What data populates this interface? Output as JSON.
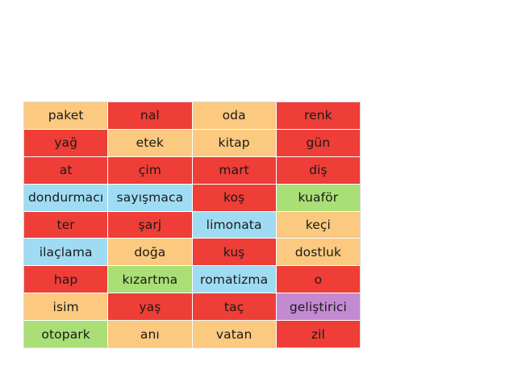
{
  "colors": {
    "orange": "#fbc97f",
    "red": "#ee3e37",
    "blue": "#9fdcf3",
    "green": "#a9df76",
    "purple": "#c48ad1"
  },
  "grid": {
    "rows": [
      [
        {
          "word": "paket",
          "color": "orange"
        },
        {
          "word": "nal",
          "color": "red"
        },
        {
          "word": "oda",
          "color": "orange"
        },
        {
          "word": "renk",
          "color": "red"
        }
      ],
      [
        {
          "word": "yağ",
          "color": "red"
        },
        {
          "word": "etek",
          "color": "orange"
        },
        {
          "word": "kitap",
          "color": "orange"
        },
        {
          "word": "gün",
          "color": "red"
        }
      ],
      [
        {
          "word": "at",
          "color": "red"
        },
        {
          "word": "çim",
          "color": "red"
        },
        {
          "word": "mart",
          "color": "red"
        },
        {
          "word": "diş",
          "color": "red"
        }
      ],
      [
        {
          "word": "dondurmacı",
          "color": "blue"
        },
        {
          "word": "sayışmaca",
          "color": "blue"
        },
        {
          "word": "koş",
          "color": "red"
        },
        {
          "word": "kuaför",
          "color": "green"
        }
      ],
      [
        {
          "word": "ter",
          "color": "red"
        },
        {
          "word": "şarj",
          "color": "red"
        },
        {
          "word": "limonata",
          "color": "blue"
        },
        {
          "word": "keçi",
          "color": "orange"
        }
      ],
      [
        {
          "word": "ilaçlama",
          "color": "blue"
        },
        {
          "word": "doğa",
          "color": "orange"
        },
        {
          "word": "kuş",
          "color": "red"
        },
        {
          "word": "dostluk",
          "color": "orange"
        }
      ],
      [
        {
          "word": "hap",
          "color": "red"
        },
        {
          "word": "kızartma",
          "color": "green"
        },
        {
          "word": "romatizma",
          "color": "blue"
        },
        {
          "word": "o",
          "color": "red"
        }
      ],
      [
        {
          "word": "isim",
          "color": "orange"
        },
        {
          "word": "yaş",
          "color": "red"
        },
        {
          "word": "taç",
          "color": "red"
        },
        {
          "word": "geliştirici",
          "color": "purple"
        }
      ],
      [
        {
          "word": "otopark",
          "color": "green"
        },
        {
          "word": "anı",
          "color": "orange"
        },
        {
          "word": "vatan",
          "color": "orange"
        },
        {
          "word": "zil",
          "color": "red"
        }
      ]
    ]
  }
}
